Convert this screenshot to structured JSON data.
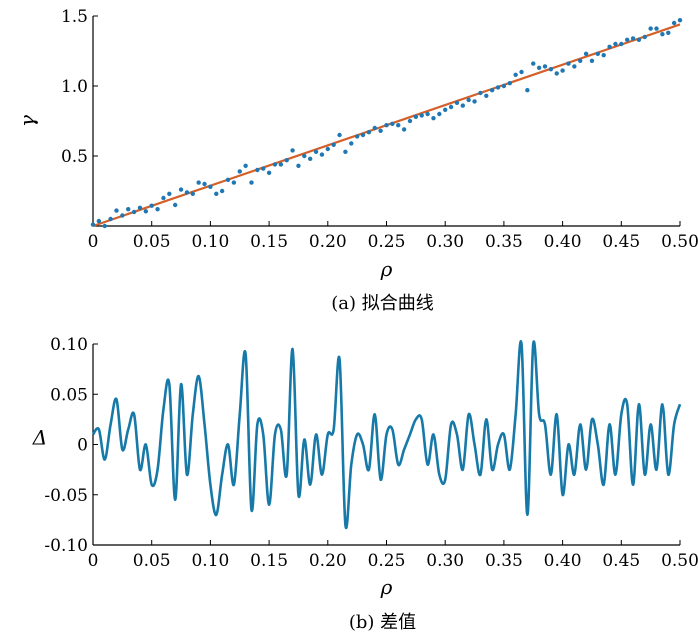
{
  "colors": {
    "scatter": "#1f77b4",
    "fit_line": "#d45f28",
    "delta_line": "#1679a8",
    "axis": "#000000"
  },
  "chart_data": [
    {
      "type": "scatter",
      "caption": "(a) 拟合曲线",
      "xlabel": "ρ",
      "ylabel": "γ",
      "xlim": [
        0,
        0.5
      ],
      "ylim": [
        0,
        1.5
      ],
      "xticks": [
        0,
        0.05,
        0.1,
        0.15,
        0.2,
        0.25,
        0.3,
        0.35,
        0.4,
        0.45,
        0.5
      ],
      "xtick_labels": [
        "0",
        "0.05",
        "0.10",
        "0.15",
        "0.20",
        "0.25",
        "0.30",
        "0.35",
        "0.40",
        "0.45",
        "0.50"
      ],
      "yticks": [
        0.5,
        1.0,
        1.5
      ],
      "ytick_labels": [
        "0.5",
        "1.0",
        "1.5"
      ],
      "fit_line": {
        "x": [
          0,
          0.5
        ],
        "y": [
          0,
          1.44
        ]
      },
      "points": {
        "x": [
          0.0,
          0.005,
          0.01,
          0.015,
          0.02,
          0.025,
          0.03,
          0.035,
          0.04,
          0.045,
          0.05,
          0.055,
          0.06,
          0.065,
          0.07,
          0.075,
          0.08,
          0.085,
          0.09,
          0.095,
          0.1,
          0.105,
          0.11,
          0.115,
          0.12,
          0.125,
          0.13,
          0.135,
          0.14,
          0.145,
          0.15,
          0.155,
          0.16,
          0.165,
          0.17,
          0.175,
          0.18,
          0.185,
          0.19,
          0.195,
          0.2,
          0.205,
          0.21,
          0.215,
          0.22,
          0.225,
          0.23,
          0.235,
          0.24,
          0.245,
          0.25,
          0.255,
          0.26,
          0.265,
          0.27,
          0.275,
          0.28,
          0.285,
          0.29,
          0.295,
          0.3,
          0.305,
          0.31,
          0.315,
          0.32,
          0.325,
          0.33,
          0.335,
          0.34,
          0.345,
          0.35,
          0.355,
          0.36,
          0.365,
          0.37,
          0.375,
          0.38,
          0.385,
          0.39,
          0.395,
          0.4,
          0.405,
          0.41,
          0.415,
          0.42,
          0.425,
          0.43,
          0.435,
          0.44,
          0.445,
          0.45,
          0.455,
          0.46,
          0.465,
          0.47,
          0.475,
          0.48,
          0.485,
          0.49,
          0.495,
          0.5
        ],
        "y": [
          0.01,
          0.035,
          0.0,
          0.05,
          0.11,
          0.075,
          0.12,
          0.1,
          0.13,
          0.105,
          0.145,
          0.12,
          0.2,
          0.23,
          0.15,
          0.26,
          0.24,
          0.23,
          0.31,
          0.3,
          0.28,
          0.23,
          0.25,
          0.33,
          0.31,
          0.39,
          0.43,
          0.31,
          0.4,
          0.41,
          0.38,
          0.44,
          0.44,
          0.47,
          0.54,
          0.43,
          0.5,
          0.48,
          0.53,
          0.51,
          0.55,
          0.58,
          0.65,
          0.53,
          0.59,
          0.64,
          0.65,
          0.67,
          0.7,
          0.68,
          0.72,
          0.73,
          0.72,
          0.69,
          0.75,
          0.78,
          0.79,
          0.8,
          0.77,
          0.8,
          0.83,
          0.85,
          0.88,
          0.86,
          0.9,
          0.89,
          0.95,
          0.93,
          0.97,
          0.99,
          1.0,
          1.02,
          1.08,
          1.1,
          0.97,
          1.16,
          1.13,
          1.14,
          1.12,
          1.09,
          1.11,
          1.16,
          1.14,
          1.18,
          1.23,
          1.18,
          1.23,
          1.22,
          1.28,
          1.3,
          1.3,
          1.33,
          1.34,
          1.33,
          1.35,
          1.41,
          1.41,
          1.37,
          1.38,
          1.45,
          1.47
        ]
      }
    },
    {
      "type": "line",
      "caption": "(b) 差值",
      "xlabel": "ρ",
      "ylabel": "Δ",
      "xlim": [
        0,
        0.5
      ],
      "ylim": [
        -0.1,
        0.1
      ],
      "xticks": [
        0,
        0.05,
        0.1,
        0.15,
        0.2,
        0.25,
        0.3,
        0.35,
        0.4,
        0.45,
        0.5
      ],
      "xtick_labels": [
        "0",
        "0.05",
        "0.10",
        "0.15",
        "0.20",
        "0.25",
        "0.30",
        "0.35",
        "0.40",
        "0.45",
        "0.50"
      ],
      "yticks": [
        -0.1,
        -0.05,
        0,
        0.05,
        0.1
      ],
      "ytick_labels": [
        "-0.10",
        "-0.05",
        "0",
        "0.05",
        "0.10"
      ],
      "x": [
        0.0,
        0.005,
        0.01,
        0.015,
        0.02,
        0.025,
        0.03,
        0.035,
        0.04,
        0.045,
        0.05,
        0.055,
        0.06,
        0.065,
        0.07,
        0.075,
        0.08,
        0.085,
        0.09,
        0.095,
        0.1,
        0.105,
        0.11,
        0.115,
        0.12,
        0.125,
        0.13,
        0.135,
        0.14,
        0.145,
        0.15,
        0.155,
        0.16,
        0.165,
        0.17,
        0.175,
        0.18,
        0.185,
        0.19,
        0.195,
        0.2,
        0.205,
        0.21,
        0.215,
        0.22,
        0.225,
        0.23,
        0.235,
        0.24,
        0.245,
        0.25,
        0.255,
        0.26,
        0.265,
        0.27,
        0.275,
        0.28,
        0.285,
        0.29,
        0.295,
        0.3,
        0.305,
        0.31,
        0.315,
        0.32,
        0.325,
        0.33,
        0.335,
        0.34,
        0.345,
        0.35,
        0.355,
        0.36,
        0.365,
        0.37,
        0.375,
        0.38,
        0.385,
        0.39,
        0.395,
        0.4,
        0.405,
        0.41,
        0.415,
        0.42,
        0.425,
        0.43,
        0.435,
        0.44,
        0.445,
        0.45,
        0.455,
        0.46,
        0.465,
        0.47,
        0.475,
        0.48,
        0.485,
        0.49,
        0.495,
        0.5
      ],
      "y": [
        0.01,
        0.015,
        -0.015,
        0.02,
        0.045,
        -0.005,
        0.015,
        0.03,
        -0.025,
        0.0,
        -0.04,
        -0.025,
        0.035,
        0.06,
        -0.055,
        0.06,
        -0.03,
        0.03,
        0.068,
        0.02,
        -0.04,
        -0.07,
        -0.03,
        0.0,
        -0.04,
        0.03,
        0.09,
        -0.065,
        0.02,
        0.01,
        -0.06,
        0.01,
        0.015,
        -0.03,
        0.095,
        -0.05,
        0.005,
        -0.04,
        0.01,
        -0.03,
        0.01,
        0.015,
        0.085,
        -0.08,
        -0.02,
        0.01,
        0.0,
        -0.025,
        0.03,
        -0.035,
        0.01,
        0.015,
        -0.02,
        -0.005,
        0.01,
        0.025,
        0.025,
        -0.02,
        0.01,
        -0.03,
        -0.035,
        0.02,
        0.01,
        -0.025,
        0.03,
        0.0,
        -0.03,
        0.025,
        -0.025,
        0.0,
        0.01,
        -0.025,
        0.03,
        0.1,
        -0.07,
        0.1,
        0.03,
        0.02,
        -0.03,
        0.03,
        -0.05,
        0.0,
        -0.03,
        0.02,
        -0.025,
        0.025,
        0.0,
        -0.04,
        0.02,
        -0.03,
        0.03,
        0.04,
        -0.04,
        0.04,
        -0.03,
        0.02,
        -0.025,
        0.04,
        -0.03,
        0.02,
        0.04
      ]
    }
  ]
}
